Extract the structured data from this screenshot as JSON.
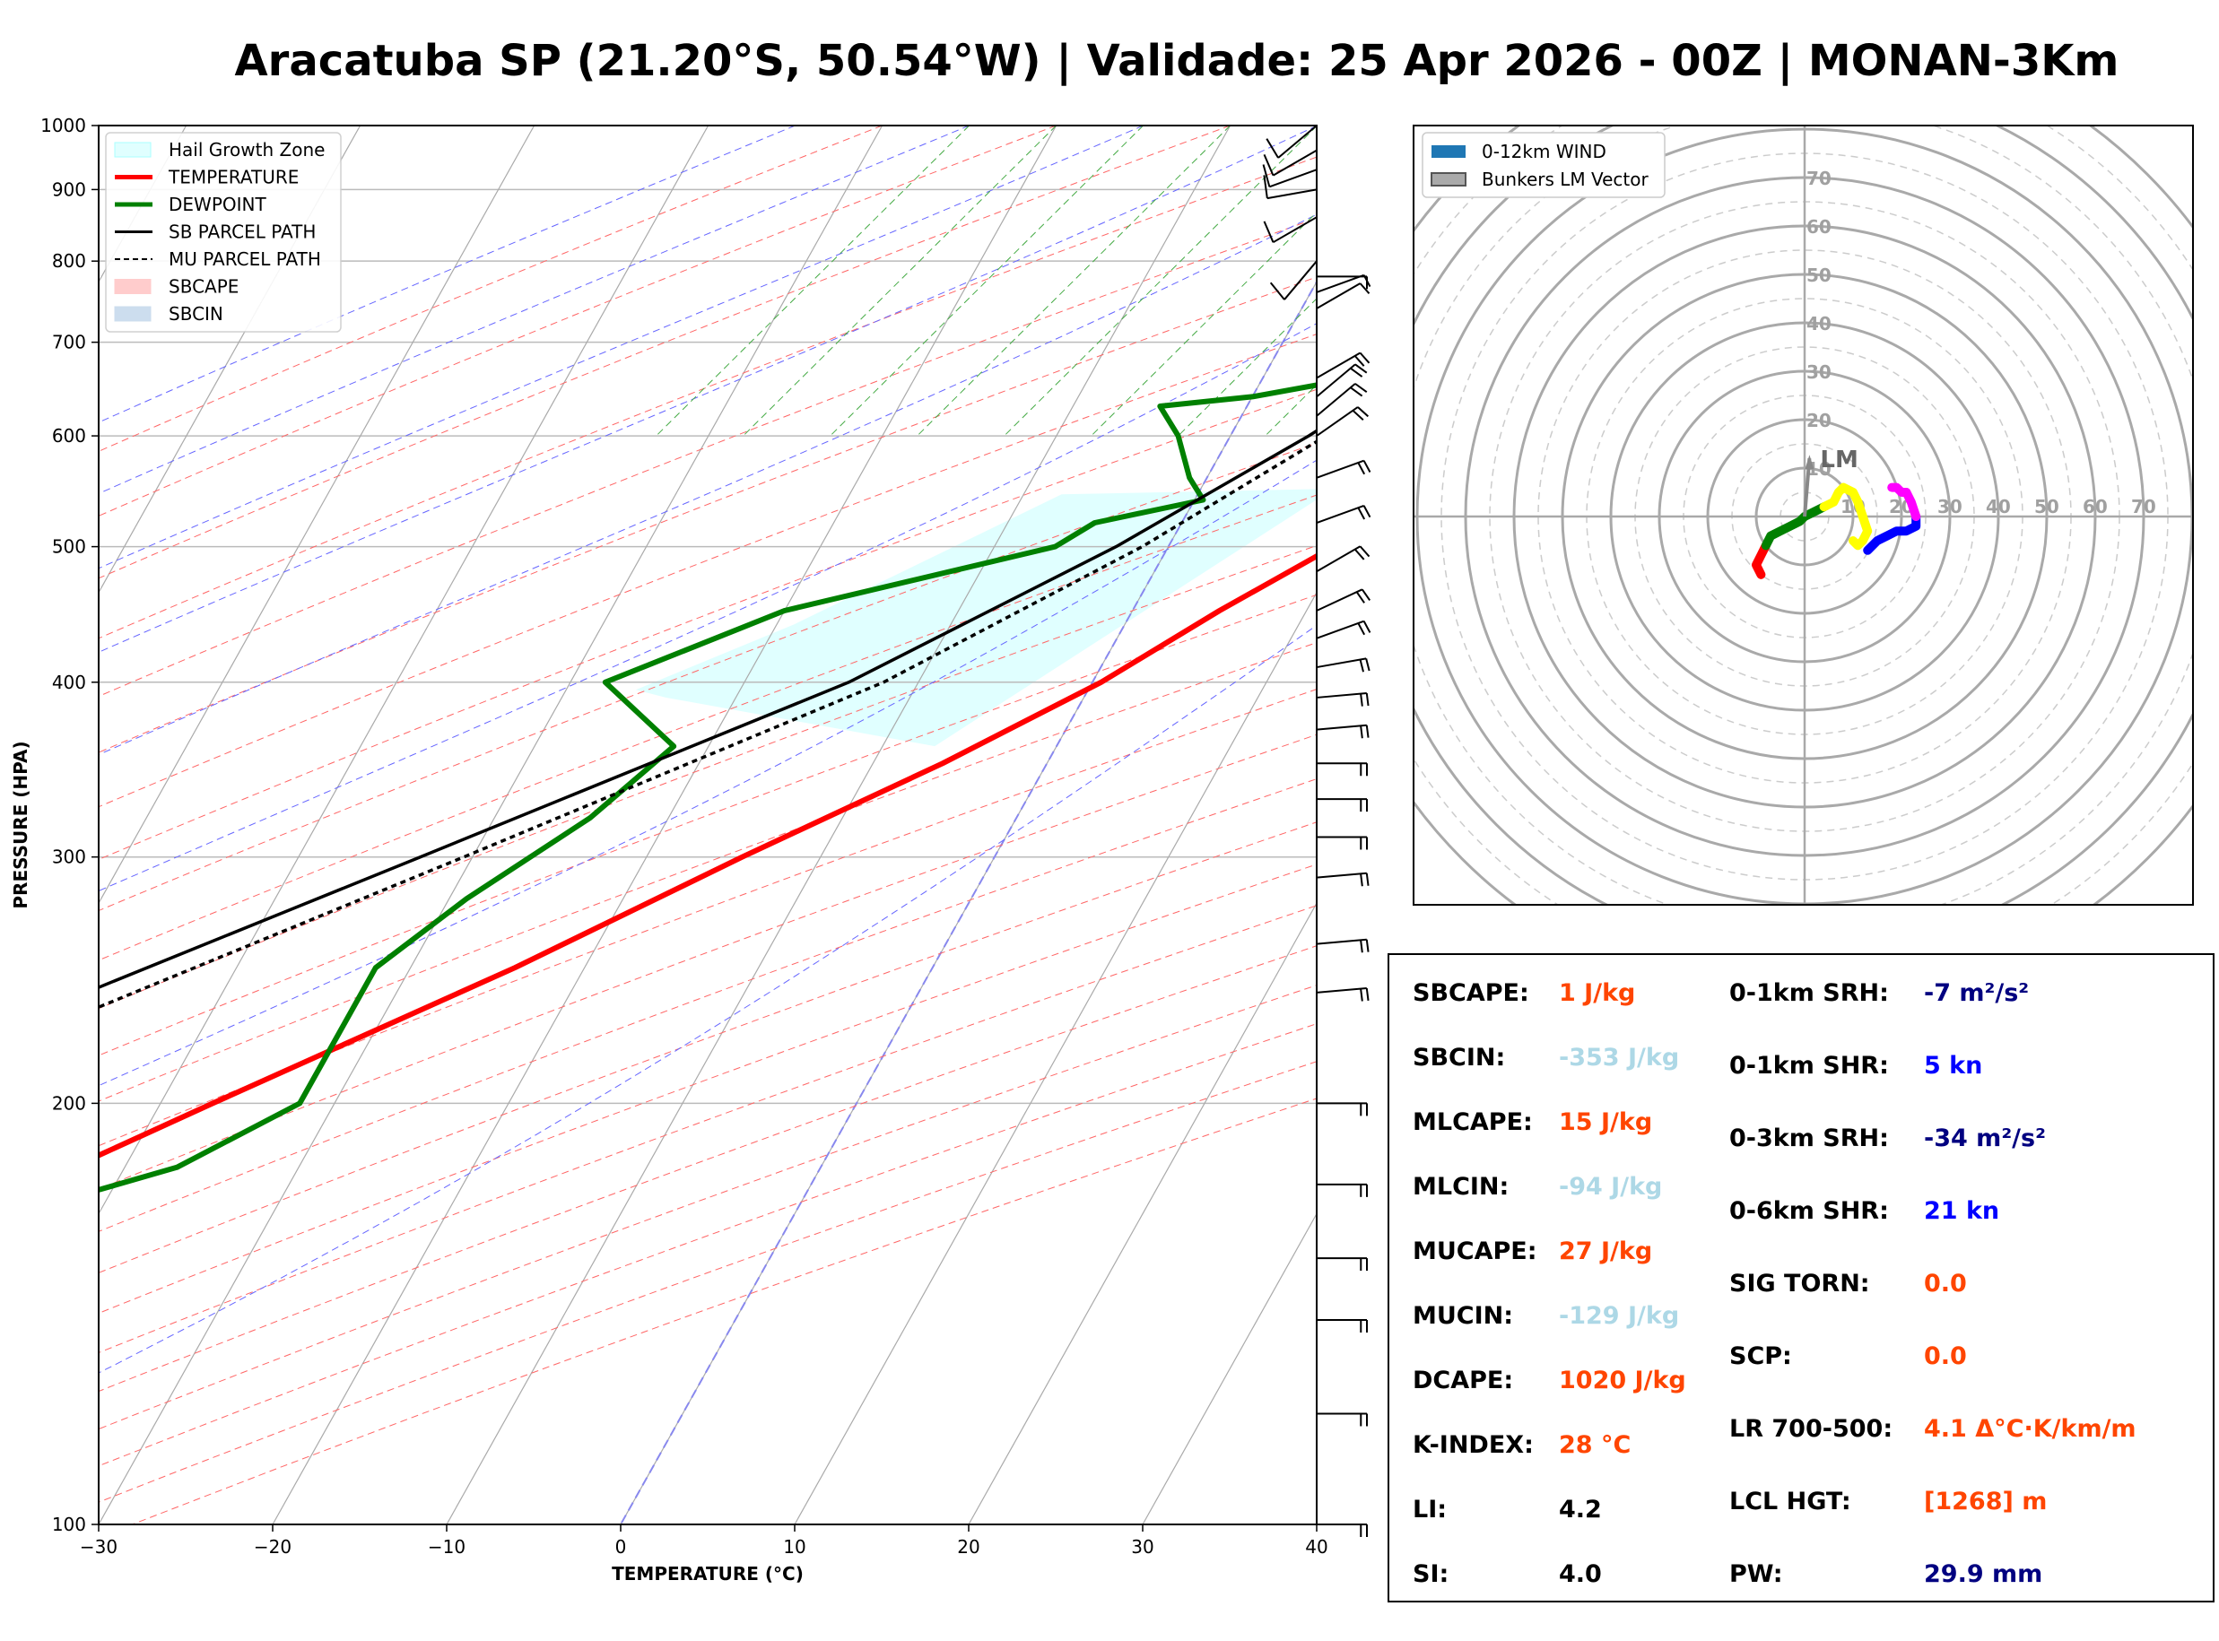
{
  "title": "Aracatuba SP (21.20°S, 50.54°W) | Validade: 25 Apr 2026 - 00Z | MONAN-3Km",
  "skewt": {
    "xlabel": "TEMPERATURE (°C)",
    "ylabel": "PRESSURE (HPA)",
    "xticks": [
      "−30",
      "−20",
      "−10",
      "0",
      "10",
      "20",
      "30",
      "40"
    ],
    "yticks": [
      "100",
      "200",
      "300",
      "400",
      "500",
      "600",
      "700",
      "800",
      "900",
      "1000"
    ],
    "legend": [
      "Hail Growth Zone",
      "TEMPERATURE",
      "DEWPOINT",
      "SB PARCEL PATH",
      "MU PARCEL PATH",
      "SBCAPE",
      "SBCIN"
    ]
  },
  "hodograph": {
    "legend": [
      "0-12km WIND",
      "Bunkers LM Vector"
    ],
    "ring_labels_y": [
      "10",
      "20",
      "30",
      "40",
      "50",
      "60",
      "70"
    ],
    "ring_labels_x": [
      "10",
      "20",
      "30",
      "40",
      "50",
      "60",
      "70"
    ],
    "lm_label": "LM"
  },
  "params": {
    "left": [
      {
        "label": "SBCAPE:",
        "value": "1 J/kg",
        "color": "#ff4500"
      },
      {
        "label": "SBCIN:",
        "value": "-353 J/kg",
        "color": "#add8e6"
      },
      {
        "label": "MLCAPE:",
        "value": "15 J/kg",
        "color": "#ff4500"
      },
      {
        "label": "MLCIN:",
        "value": "-94 J/kg",
        "color": "#add8e6"
      },
      {
        "label": "MUCAPE:",
        "value": "27 J/kg",
        "color": "#ff4500"
      },
      {
        "label": "MUCIN:",
        "value": "-129 J/kg",
        "color": "#add8e6"
      },
      {
        "label": "DCAPE:",
        "value": "1020 J/kg",
        "color": "#ff4500"
      },
      {
        "label": "K-INDEX:",
        "value": "28 °C",
        "color": "#ff4500"
      },
      {
        "label": "LI:",
        "value": "4.2",
        "color": "#000000"
      },
      {
        "label": "SI:",
        "value": "4.0",
        "color": "#000000"
      }
    ],
    "right": [
      {
        "label": "0-1km SRH:",
        "value": "-7 m²/s²",
        "color": "#000080"
      },
      {
        "label": "0-1km SHR:",
        "value": "5 kn",
        "color": "#0000ff"
      },
      {
        "label": "0-3km SRH:",
        "value": "-34 m²/s²",
        "color": "#000080"
      },
      {
        "label": "0-6km SHR:",
        "value": "21 kn",
        "color": "#0000ff"
      },
      {
        "label": "SIG TORN:",
        "value": "0.0",
        "color": "#ff4500"
      },
      {
        "label": "SCP:",
        "value": "0.0",
        "color": "#ff4500"
      },
      {
        "label": "LR 700-500:",
        "value": "4.1 Δ°C·K/km/m",
        "color": "#ff4500"
      },
      {
        "label": "LCL HGT:",
        "value": "[1268] m",
        "color": "#ff4500"
      },
      {
        "label": "PW:",
        "value": "29.9 mm",
        "color": "#000080"
      }
    ]
  },
  "chart_data": [
    {
      "type": "line",
      "chart": "skew-t",
      "xlim": [
        -30,
        40
      ],
      "ylim": [
        1000,
        100
      ],
      "y_scale": "log",
      "skew": true,
      "series": [
        {
          "name": "TEMPERATURE",
          "color": "#ff0000",
          "points": [
            [
              1000,
              26.9
            ],
            [
              962,
              30.3
            ],
            [
              950,
              29.6
            ],
            [
              920,
              28.0
            ],
            [
              900,
              26.5
            ],
            [
              850,
              23.0
            ],
            [
              800,
              21.0
            ],
            [
              750,
              20.0
            ],
            [
              700,
              19.5
            ],
            [
              650,
              18.0
            ],
            [
              620,
              18.5
            ],
            [
              600,
              17.5
            ],
            [
              550,
              14.0
            ],
            [
              520,
              11.0
            ],
            [
              500,
              9.5
            ],
            [
              450,
              5.0
            ],
            [
              400,
              0.5
            ],
            [
              350,
              -6.0
            ],
            [
              300,
              -14.5
            ],
            [
              250,
              -24.0
            ],
            [
              200,
              -37.0
            ],
            [
              180,
              -43.0
            ],
            [
              160,
              -50.0
            ],
            [
              140,
              -57.0
            ],
            [
              120,
              -64.0
            ],
            [
              100,
              -71.0
            ]
          ]
        },
        {
          "name": "DEWPOINT",
          "color": "#008000",
          "points": [
            [
              970,
              17.0
            ],
            [
              950,
              15.5
            ],
            [
              920,
              15.0
            ],
            [
              900,
              15.5
            ],
            [
              880,
              15.2
            ],
            [
              860,
              15.5
            ],
            [
              840,
              14.5
            ],
            [
              800,
              14.0
            ],
            [
              780,
              14.0
            ],
            [
              760,
              13.0
            ],
            [
              740,
              12.5
            ],
            [
              720,
              10.0
            ],
            [
              700,
              6.0
            ],
            [
              690,
              3.0
            ],
            [
              670,
              8.0
            ],
            [
              640,
              0.0
            ],
            [
              630,
              -5.0
            ],
            [
              600,
              -3.0
            ],
            [
              560,
              -1.0
            ],
            [
              540,
              0.5
            ],
            [
              520,
              -5.0
            ],
            [
              500,
              -6.5
            ],
            [
              450,
              -20.0
            ],
            [
              400,
              -28.0
            ],
            [
              360,
              -22.0
            ],
            [
              320,
              -24.5
            ],
            [
              280,
              -29.0
            ],
            [
              250,
              -32.0
            ],
            [
              200,
              -32.0
            ],
            [
              180,
              -37.0
            ],
            [
              160,
              -49.0
            ],
            [
              140,
              -54.0
            ],
            [
              120,
              -59.0
            ],
            [
              100,
              -67.0
            ]
          ]
        },
        {
          "name": "SB PARCEL PATH",
          "color": "#000000",
          "points": [
            [
              1000,
              27.0
            ],
            [
              950,
              22.5
            ],
            [
              900,
              18.5
            ],
            [
              850,
              16.5
            ],
            [
              800,
              14.5
            ],
            [
              700,
              10.0
            ],
            [
              600,
              4.5
            ],
            [
              500,
              -3.0
            ],
            [
              400,
              -14.0
            ],
            [
              300,
              -33.0
            ],
            [
              200,
              -60.0
            ],
            [
              150,
              -78.0
            ],
            [
              100,
              -96.0
            ]
          ]
        },
        {
          "name": "MU PARCEL PATH",
          "color": "#000000",
          "dash": "6,5",
          "points": [
            [
              962,
              30.3
            ],
            [
              920,
              25.0
            ],
            [
              850,
              19.5
            ],
            [
              800,
              16.0
            ],
            [
              750,
              13.5
            ],
            [
              700,
              11.0
            ],
            [
              600,
              5.5
            ],
            [
              500,
              -1.5
            ],
            [
              400,
              -12.0
            ],
            [
              300,
              -30.5
            ],
            [
              200,
              -57.0
            ],
            [
              150,
              -74.0
            ],
            [
              100,
              -93.0
            ]
          ]
        }
      ],
      "hail_growth_zone": {
        "temp_range_c": [
          -10,
          -30
        ]
      },
      "wind_barbs": [
        {
          "p": 1000,
          "dir": 130,
          "kn": 10
        },
        {
          "p": 960,
          "dir": 120,
          "kn": 10
        },
        {
          "p": 930,
          "dir": 110,
          "kn": 10
        },
        {
          "p": 900,
          "dir": 100,
          "kn": 10
        },
        {
          "p": 860,
          "dir": 120,
          "kn": 10
        },
        {
          "p": 800,
          "dir": 140,
          "kn": 10
        },
        {
          "p": 780,
          "dir": 270,
          "kn": 10
        },
        {
          "p": 760,
          "dir": 290,
          "kn": 10
        },
        {
          "p": 740,
          "dir": 300,
          "kn": 10
        },
        {
          "p": 660,
          "dir": 300,
          "kn": 15
        },
        {
          "p": 640,
          "dir": 310,
          "kn": 15
        },
        {
          "p": 620,
          "dir": 310,
          "kn": 15
        },
        {
          "p": 600,
          "dir": 305,
          "kn": 15
        },
        {
          "p": 560,
          "dir": 290,
          "kn": 15
        },
        {
          "p": 520,
          "dir": 290,
          "kn": 15
        },
        {
          "p": 480,
          "dir": 300,
          "kn": 20
        },
        {
          "p": 450,
          "dir": 295,
          "kn": 20
        },
        {
          "p": 430,
          "dir": 290,
          "kn": 20
        },
        {
          "p": 410,
          "dir": 280,
          "kn": 20
        },
        {
          "p": 390,
          "dir": 275,
          "kn": 20
        },
        {
          "p": 370,
          "dir": 275,
          "kn": 20
        },
        {
          "p": 350,
          "dir": 270,
          "kn": 20
        },
        {
          "p": 330,
          "dir": 270,
          "kn": 20
        },
        {
          "p": 310,
          "dir": 270,
          "kn": 20
        },
        {
          "p": 290,
          "dir": 275,
          "kn": 20
        },
        {
          "p": 260,
          "dir": 275,
          "kn": 20
        },
        {
          "p": 240,
          "dir": 275,
          "kn": 20
        },
        {
          "p": 200,
          "dir": 270,
          "kn": 20
        },
        {
          "p": 175,
          "dir": 270,
          "kn": 20
        },
        {
          "p": 155,
          "dir": 270,
          "kn": 20
        },
        {
          "p": 140,
          "dir": 270,
          "kn": 20
        },
        {
          "p": 120,
          "dir": 270,
          "kn": 20
        },
        {
          "p": 100,
          "dir": 270,
          "kn": 20
        }
      ]
    },
    {
      "type": "line",
      "chart": "hodograph",
      "xlim": [
        -80,
        80
      ],
      "ylim": [
        -80,
        80
      ],
      "rings": [
        10,
        20,
        30,
        40,
        50,
        60,
        70,
        80
      ],
      "series": [
        {
          "name": "0-1km",
          "color": "#ff0000",
          "points": [
            [
              -9,
              -12
            ],
            [
              -10,
              -10
            ],
            [
              -9,
              -8
            ],
            [
              -8,
              -6
            ]
          ]
        },
        {
          "name": "1-3km",
          "color": "#008000",
          "points": [
            [
              -8,
              -6
            ],
            [
              -7,
              -4
            ],
            [
              -5,
              -3
            ],
            [
              -3,
              -2
            ],
            [
              -1,
              -1
            ],
            [
              0,
              0
            ],
            [
              2,
              1
            ],
            [
              4,
              2
            ]
          ]
        },
        {
          "name": "3-6km",
          "color": "#ffff00",
          "points": [
            [
              4,
              2
            ],
            [
              6,
              3
            ],
            [
              7,
              5
            ],
            [
              8,
              6
            ],
            [
              10,
              5
            ],
            [
              11,
              3
            ],
            [
              12,
              0
            ],
            [
              13,
              -3
            ],
            [
              12,
              -5
            ],
            [
              11,
              -6
            ],
            [
              10,
              -5
            ]
          ]
        },
        {
          "name": "6-9km",
          "color": "#0000ff",
          "points": [
            [
              13,
              -7
            ],
            [
              15,
              -5
            ],
            [
              17,
              -4
            ],
            [
              19,
              -3
            ],
            [
              21,
              -3
            ],
            [
              23,
              -2
            ],
            [
              23,
              0
            ]
          ]
        },
        {
          "name": "9-12km",
          "color": "#ff00ff",
          "points": [
            [
              23,
              0
            ],
            [
              22,
              3
            ],
            [
              21,
              5
            ],
            [
              20,
              5
            ],
            [
              19,
              6
            ],
            [
              18,
              6
            ]
          ]
        }
      ],
      "bunkers_lm": [
        1,
        12
      ]
    }
  ]
}
